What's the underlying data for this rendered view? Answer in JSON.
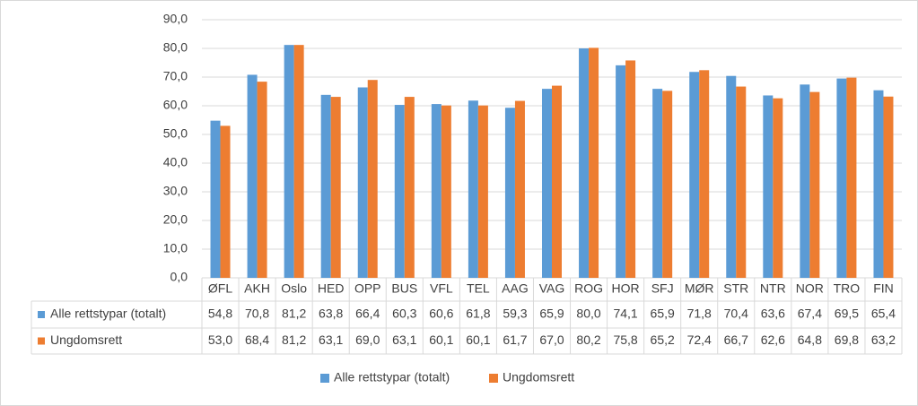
{
  "chart_data": {
    "type": "bar",
    "categories": [
      "ØFL",
      "AKH",
      "Oslo",
      "HED",
      "OPP",
      "BUS",
      "VFL",
      "TEL",
      "AAG",
      "VAG",
      "ROG",
      "HOR",
      "SFJ",
      "MØR",
      "STR",
      "NTR",
      "NOR",
      "TRO",
      "FIN"
    ],
    "series": [
      {
        "name": "Alle rettstypar (totalt)",
        "color": "#5b9bd5",
        "values": [
          54.8,
          70.8,
          81.2,
          63.8,
          66.4,
          60.3,
          60.6,
          61.8,
          59.3,
          65.9,
          80.0,
          74.1,
          65.9,
          71.8,
          70.4,
          63.6,
          67.4,
          69.5,
          65.4
        ],
        "value_labels": [
          "54,8",
          "70,8",
          "81,2",
          "63,8",
          "66,4",
          "60,3",
          "60,6",
          "61,8",
          "59,3",
          "65,9",
          "80,0",
          "74,1",
          "65,9",
          "71,8",
          "70,4",
          "63,6",
          "67,4",
          "69,5",
          "65,4"
        ]
      },
      {
        "name": "Ungdomsrett",
        "color": "#ed7d31",
        "values": [
          53.0,
          68.4,
          81.2,
          63.1,
          69.0,
          63.1,
          60.1,
          60.1,
          61.7,
          67.0,
          80.2,
          75.8,
          65.2,
          72.4,
          66.7,
          62.6,
          64.8,
          69.8,
          63.2
        ],
        "value_labels": [
          "53,0",
          "68,4",
          "81,2",
          "63,1",
          "69,0",
          "63,1",
          "60,1",
          "60,1",
          "61,7",
          "67,0",
          "80,2",
          "75,8",
          "65,2",
          "72,4",
          "66,7",
          "62,6",
          "64,8",
          "69,8",
          "63,2"
        ]
      }
    ],
    "ylim": [
      0,
      90
    ],
    "yticks": [
      {
        "value": 0,
        "label": "0,0"
      },
      {
        "value": 10,
        "label": "10,0"
      },
      {
        "value": 20,
        "label": "20,0"
      },
      {
        "value": 30,
        "label": "30,0"
      },
      {
        "value": 40,
        "label": "40,0"
      },
      {
        "value": 50,
        "label": "50,0"
      },
      {
        "value": 60,
        "label": "60,0"
      },
      {
        "value": 70,
        "label": "70,0"
      },
      {
        "value": 80,
        "label": "80,0"
      },
      {
        "value": 90,
        "label": "90,0"
      }
    ],
    "grid": true
  }
}
